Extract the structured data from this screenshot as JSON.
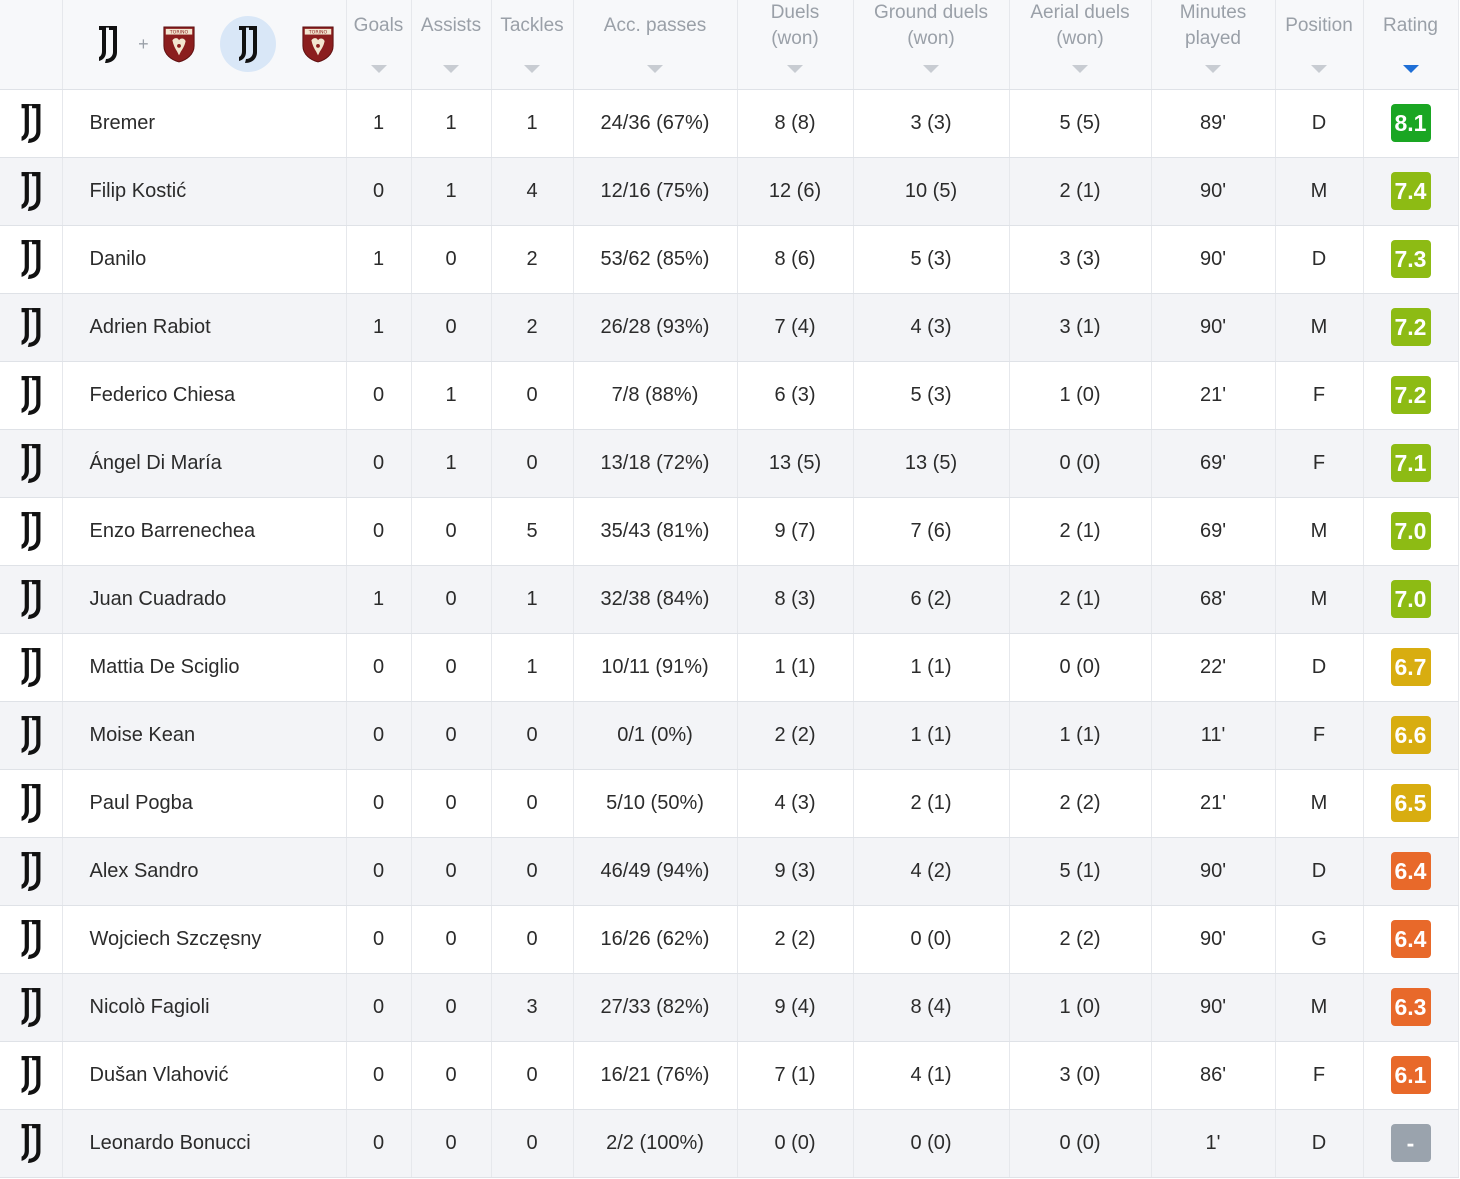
{
  "header": {
    "teams": [
      {
        "name": "juventus-logo"
      },
      {
        "name": "torino-logo"
      },
      {
        "name": "juventus-logo",
        "selected": true
      },
      {
        "name": "torino-logo"
      }
    ],
    "plus": "+",
    "columns": {
      "goals": "Goals",
      "assists": "Assists",
      "tackles": "Tackles",
      "acc_passes": "Acc. passes",
      "duels_1": "Duels",
      "duels_2": "(won)",
      "ground_1": "Ground duels",
      "ground_2": "(won)",
      "aerial_1": "Aerial duels",
      "aerial_2": "(won)",
      "minutes_1": "Minutes",
      "minutes_2": "played",
      "position": "Position",
      "rating": "Rating"
    },
    "sorted_by": "rating"
  },
  "colors": {
    "rating_dark_green": "#1aa623",
    "rating_olive": "#8dbb14",
    "rating_yellow": "#d8ad10",
    "rating_orange": "#e8692a",
    "rating_none": "#9aa3ad",
    "sort_active": "#1f6fd6"
  },
  "players": [
    {
      "name": "Bremer",
      "goals": "1",
      "assists": "1",
      "tackles": "1",
      "passes": "24/36 (67%)",
      "duels": "8 (8)",
      "ground": "3 (3)",
      "aerial": "5 (5)",
      "minutes": "89'",
      "position": "D",
      "rating": "8.1",
      "rating_color": "#1aa623"
    },
    {
      "name": "Filip Kostić",
      "goals": "0",
      "assists": "1",
      "tackles": "4",
      "passes": "12/16 (75%)",
      "duels": "12 (6)",
      "ground": "10 (5)",
      "aerial": "2 (1)",
      "minutes": "90'",
      "position": "M",
      "rating": "7.4",
      "rating_color": "#8dbb14"
    },
    {
      "name": "Danilo",
      "goals": "1",
      "assists": "0",
      "tackles": "2",
      "passes": "53/62 (85%)",
      "duels": "8 (6)",
      "ground": "5 (3)",
      "aerial": "3 (3)",
      "minutes": "90'",
      "position": "D",
      "rating": "7.3",
      "rating_color": "#8dbb14"
    },
    {
      "name": "Adrien Rabiot",
      "goals": "1",
      "assists": "0",
      "tackles": "2",
      "passes": "26/28 (93%)",
      "duels": "7 (4)",
      "ground": "4 (3)",
      "aerial": "3 (1)",
      "minutes": "90'",
      "position": "M",
      "rating": "7.2",
      "rating_color": "#8dbb14"
    },
    {
      "name": "Federico Chiesa",
      "goals": "0",
      "assists": "1",
      "tackles": "0",
      "passes": "7/8 (88%)",
      "duels": "6 (3)",
      "ground": "5 (3)",
      "aerial": "1 (0)",
      "minutes": "21'",
      "position": "F",
      "rating": "7.2",
      "rating_color": "#8dbb14"
    },
    {
      "name": "Ángel Di María",
      "goals": "0",
      "assists": "1",
      "tackles": "0",
      "passes": "13/18 (72%)",
      "duels": "13 (5)",
      "ground": "13 (5)",
      "aerial": "0 (0)",
      "minutes": "69'",
      "position": "F",
      "rating": "7.1",
      "rating_color": "#8dbb14"
    },
    {
      "name": "Enzo Barrenechea",
      "goals": "0",
      "assists": "0",
      "tackles": "5",
      "passes": "35/43 (81%)",
      "duels": "9 (7)",
      "ground": "7 (6)",
      "aerial": "2 (1)",
      "minutes": "69'",
      "position": "M",
      "rating": "7.0",
      "rating_color": "#8dbb14"
    },
    {
      "name": "Juan Cuadrado",
      "goals": "1",
      "assists": "0",
      "tackles": "1",
      "passes": "32/38 (84%)",
      "duels": "8 (3)",
      "ground": "6 (2)",
      "aerial": "2 (1)",
      "minutes": "68'",
      "position": "M",
      "rating": "7.0",
      "rating_color": "#8dbb14"
    },
    {
      "name": "Mattia De Sciglio",
      "goals": "0",
      "assists": "0",
      "tackles": "1",
      "passes": "10/11 (91%)",
      "duels": "1 (1)",
      "ground": "1 (1)",
      "aerial": "0 (0)",
      "minutes": "22'",
      "position": "D",
      "rating": "6.7",
      "rating_color": "#d8ad10"
    },
    {
      "name": "Moise Kean",
      "goals": "0",
      "assists": "0",
      "tackles": "0",
      "passes": "0/1 (0%)",
      "duels": "2 (2)",
      "ground": "1 (1)",
      "aerial": "1 (1)",
      "minutes": "11'",
      "position": "F",
      "rating": "6.6",
      "rating_color": "#d8ad10"
    },
    {
      "name": "Paul Pogba",
      "goals": "0",
      "assists": "0",
      "tackles": "0",
      "passes": "5/10 (50%)",
      "duels": "4 (3)",
      "ground": "2 (1)",
      "aerial": "2 (2)",
      "minutes": "21'",
      "position": "M",
      "rating": "6.5",
      "rating_color": "#d8ad10"
    },
    {
      "name": "Alex Sandro",
      "goals": "0",
      "assists": "0",
      "tackles": "0",
      "passes": "46/49 (94%)",
      "duels": "9 (3)",
      "ground": "4 (2)",
      "aerial": "5 (1)",
      "minutes": "90'",
      "position": "D",
      "rating": "6.4",
      "rating_color": "#e8692a"
    },
    {
      "name": "Wojciech Szczęsny",
      "goals": "0",
      "assists": "0",
      "tackles": "0",
      "passes": "16/26 (62%)",
      "duels": "2 (2)",
      "ground": "0 (0)",
      "aerial": "2 (2)",
      "minutes": "90'",
      "position": "G",
      "rating": "6.4",
      "rating_color": "#e8692a"
    },
    {
      "name": "Nicolò Fagioli",
      "goals": "0",
      "assists": "0",
      "tackles": "3",
      "passes": "27/33 (82%)",
      "duels": "9 (4)",
      "ground": "8 (4)",
      "aerial": "1 (0)",
      "minutes": "90'",
      "position": "M",
      "rating": "6.3",
      "rating_color": "#e8692a"
    },
    {
      "name": "Dušan Vlahović",
      "goals": "0",
      "assists": "0",
      "tackles": "0",
      "passes": "16/21 (76%)",
      "duels": "7 (1)",
      "ground": "4 (1)",
      "aerial": "3 (0)",
      "minutes": "86'",
      "position": "F",
      "rating": "6.1",
      "rating_color": "#e8692a"
    },
    {
      "name": "Leonardo Bonucci",
      "goals": "0",
      "assists": "0",
      "tackles": "0",
      "passes": "2/2 (100%)",
      "duels": "0 (0)",
      "ground": "0 (0)",
      "aerial": "0 (0)",
      "minutes": "1'",
      "position": "D",
      "rating": "-",
      "rating_color": "#9aa3ad"
    }
  ]
}
